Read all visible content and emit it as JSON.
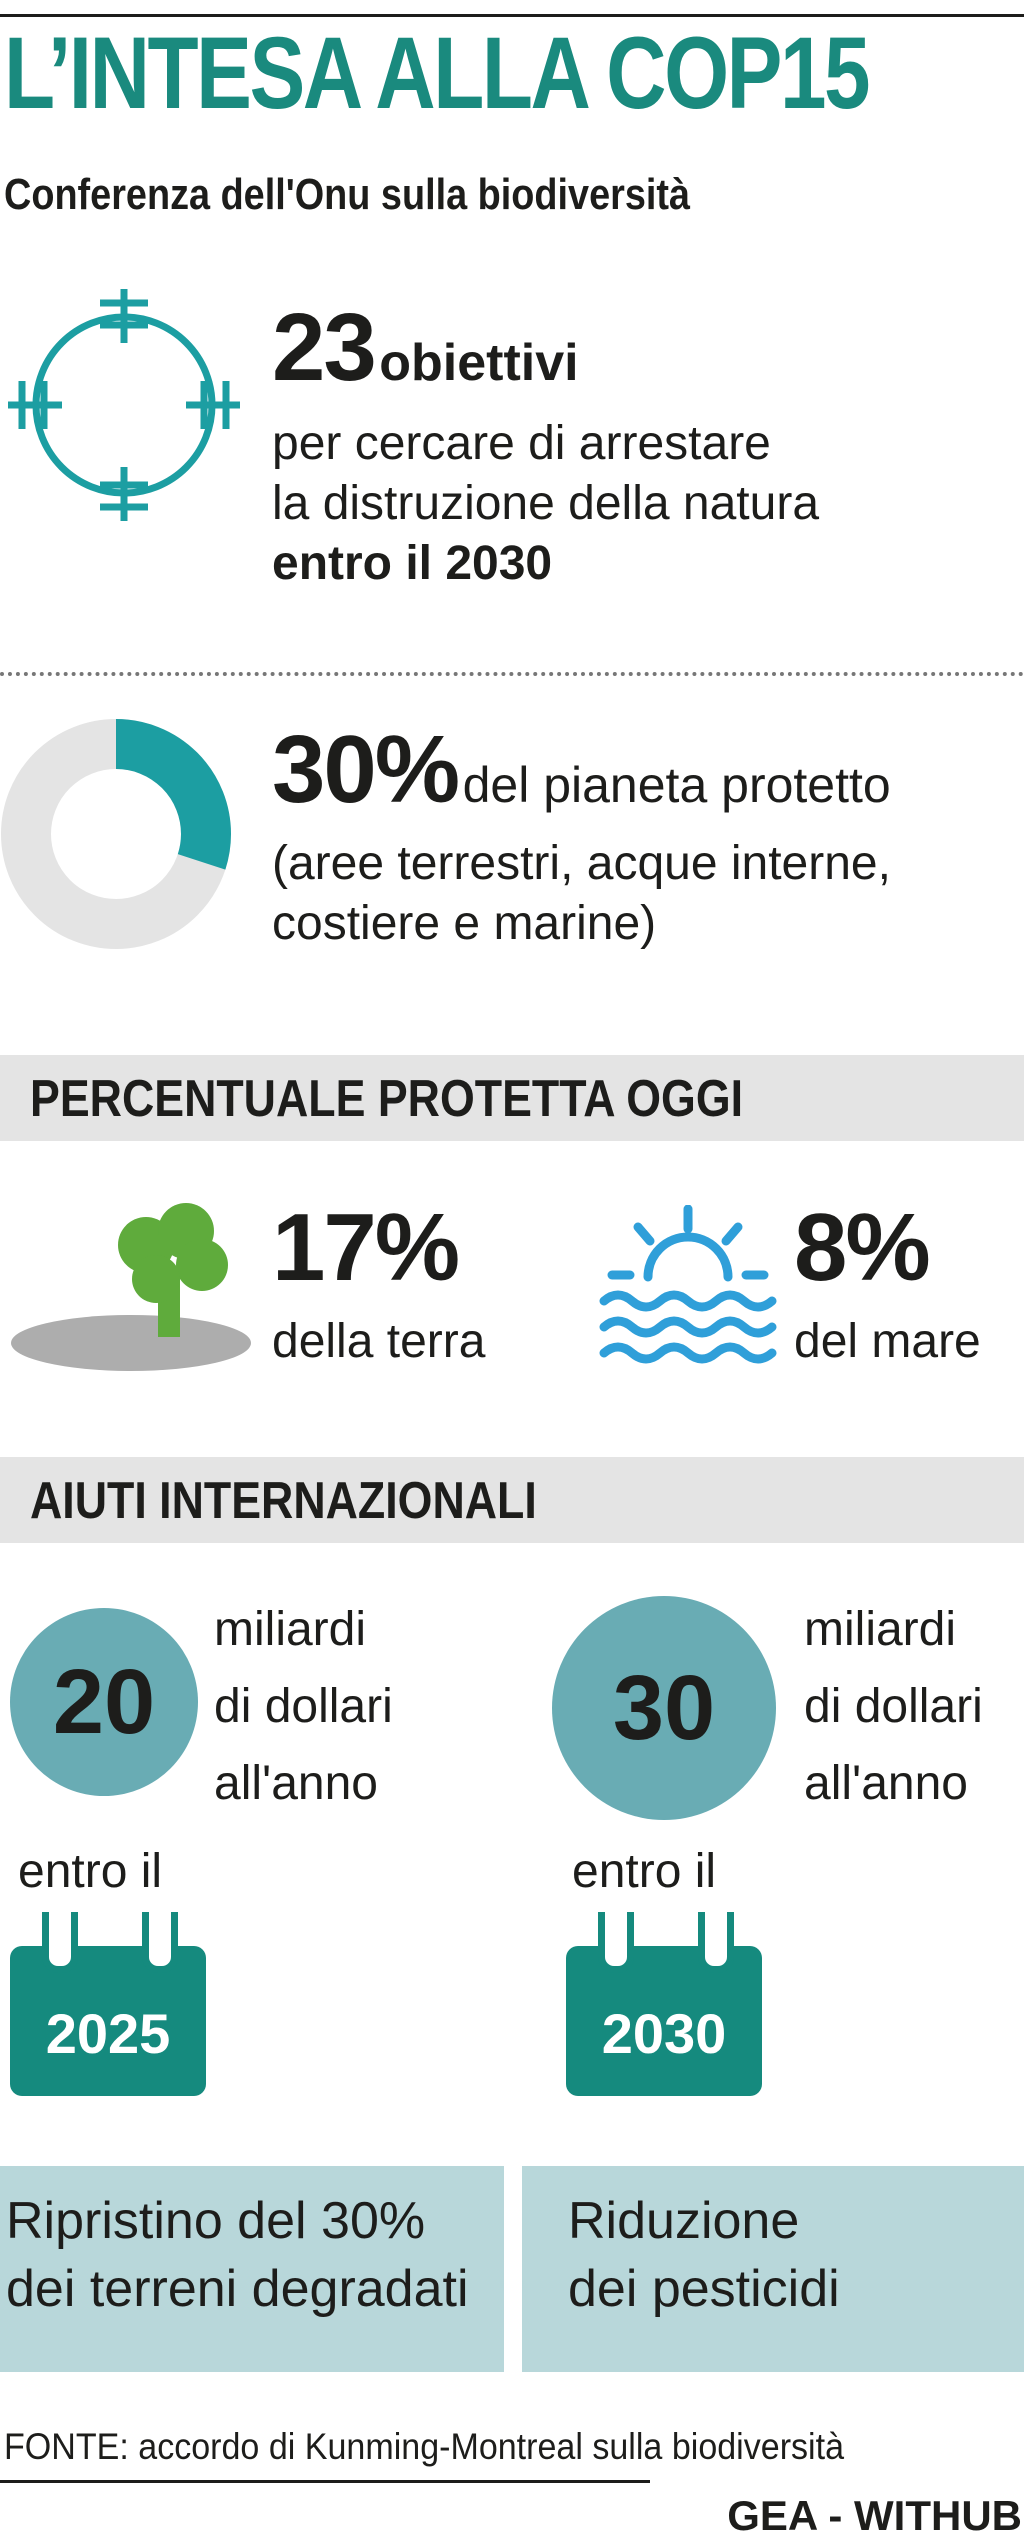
{
  "header": {
    "title": "L’INTESA ALLA COP15",
    "subtitle": "Conferenza dell'Onu sulla biodiversità"
  },
  "goals": {
    "number": "23",
    "number_label": "obiettivi",
    "line1": "per cercare di arrestare",
    "line2": "la distruzione della natura",
    "line3": "entro il 2030"
  },
  "protection": {
    "percent": "30%",
    "percent_value": 30,
    "line1": "del pianeta protetto",
    "line2": "(aree terrestri, acque interne,",
    "line3": "costiere e marine)"
  },
  "today_section": {
    "heading": "PERCENTUALE PROTETTA OGGI",
    "land_percent": "17%",
    "land_label": "della terra",
    "sea_percent": "8%",
    "sea_label": "del mare"
  },
  "aid_section": {
    "heading": "AIUTI INTERNAZIONALI",
    "items": [
      {
        "amount": "20",
        "line1": "miliardi",
        "line2": "di dollari",
        "line3": "all'anno",
        "by_label": "entro il",
        "year": "2025"
      },
      {
        "amount": "30",
        "line1": "miliardi",
        "line2": "di dollari",
        "line3": "all'anno",
        "by_label": "entro il",
        "year": "2030"
      }
    ]
  },
  "boxes": [
    {
      "line1": "Ripristino del 30%",
      "line2": "dei terreni degradati"
    },
    {
      "line1": "Riduzione",
      "line2": "dei pesticidi"
    }
  ],
  "footer": {
    "source": "FONTE: accordo di Kunming-Montreal sulla biodiversità",
    "credit": "GEA - WITHUB"
  },
  "colors": {
    "title_teal": "#1a8a7e",
    "accent_teal": "#1c9ea2",
    "circle_teal": "#69acb4",
    "calendar_green": "#158a7e",
    "tree_green": "#5fab3c",
    "sea_blue": "#2f9fd9",
    "box_blue": "#b8d7da",
    "gray": "#e4e4e4"
  },
  "icons": [
    "target-icon",
    "donut-icon",
    "tree-icon",
    "sun-sea-icon",
    "calendar-icon"
  ]
}
